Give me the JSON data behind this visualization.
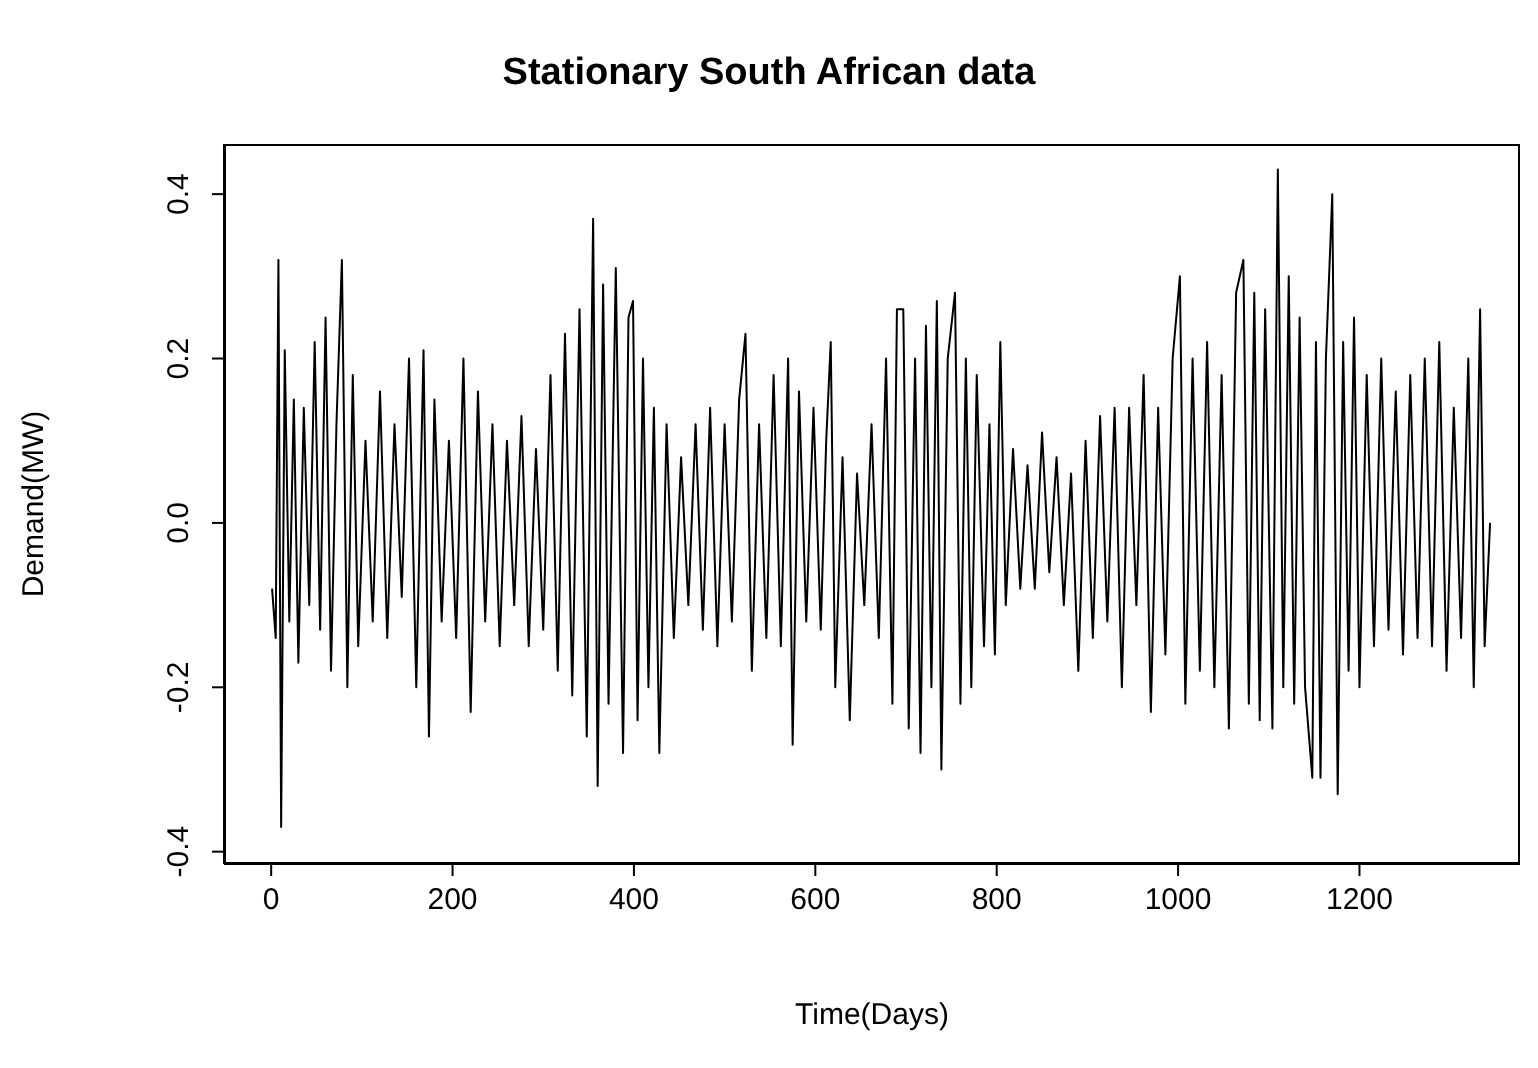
{
  "chart_data": {
    "type": "line",
    "title": "Stationary South African data",
    "xlabel": "Time(Days)",
    "ylabel": "Demand(MW)",
    "xlim": [
      -52,
      1377
    ],
    "ylim": [
      -0.415,
      0.461
    ],
    "xticks": [
      0,
      200,
      400,
      600,
      800,
      1000,
      1200
    ],
    "yticks": [
      {
        "value": -0.4,
        "label": "-0.4"
      },
      {
        "value": -0.2,
        "label": "-0.2"
      },
      {
        "value": 0,
        "label": "0.0"
      },
      {
        "value": 0.2,
        "label": "0.2"
      },
      {
        "value": 0.4,
        "label": "0.4"
      }
    ],
    "marker": "none",
    "line_style": "solid",
    "series": [
      {
        "color": "#000000",
        "x": [
          1,
          5,
          8,
          11,
          15,
          20,
          25,
          30,
          36,
          42,
          48,
          54,
          60,
          66,
          72,
          78,
          84,
          90,
          96,
          104,
          112,
          120,
          128,
          136,
          144,
          152,
          160,
          168,
          174,
          180,
          188,
          196,
          204,
          212,
          220,
          228,
          236,
          244,
          252,
          260,
          268,
          276,
          284,
          292,
          300,
          308,
          316,
          324,
          332,
          340,
          348,
          355,
          360,
          366,
          372,
          380,
          388,
          394,
          399,
          404,
          410,
          416,
          422,
          428,
          436,
          444,
          452,
          460,
          468,
          476,
          484,
          492,
          500,
          508,
          516,
          523,
          530,
          538,
          546,
          554,
          562,
          570,
          575,
          582,
          590,
          598,
          606,
          612,
          617,
          622,
          630,
          638,
          646,
          654,
          662,
          670,
          678,
          685,
          690,
          697,
          703,
          710,
          716,
          722,
          728,
          734,
          739,
          746,
          754,
          760,
          766,
          772,
          778,
          786,
          792,
          798,
          804,
          810,
          818,
          826,
          834,
          842,
          850,
          858,
          866,
          874,
          882,
          890,
          898,
          906,
          914,
          922,
          930,
          938,
          946,
          954,
          962,
          970,
          978,
          986,
          994,
          1002,
          1008,
          1016,
          1024,
          1032,
          1040,
          1048,
          1056,
          1064,
          1072,
          1078,
          1084,
          1090,
          1096,
          1104,
          1110,
          1116,
          1122,
          1128,
          1134,
          1140,
          1148,
          1152,
          1157,
          1163,
          1170,
          1176,
          1182,
          1188,
          1194,
          1200,
          1208,
          1216,
          1224,
          1232,
          1240,
          1248,
          1256,
          1264,
          1272,
          1280,
          1288,
          1296,
          1304,
          1312,
          1320,
          1326,
          1333,
          1338,
          1344
        ],
        "values": [
          -0.08,
          -0.14,
          0.32,
          -0.37,
          0.21,
          -0.12,
          0.15,
          -0.17,
          0.14,
          -0.1,
          0.22,
          -0.13,
          0.25,
          -0.18,
          0.12,
          0.32,
          -0.2,
          0.18,
          -0.15,
          0.1,
          -0.12,
          0.16,
          -0.14,
          0.12,
          -0.09,
          0.2,
          -0.2,
          0.21,
          -0.26,
          0.15,
          -0.12,
          0.1,
          -0.14,
          0.2,
          -0.23,
          0.16,
          -0.12,
          0.12,
          -0.15,
          0.1,
          -0.1,
          0.13,
          -0.15,
          0.09,
          -0.13,
          0.18,
          -0.18,
          0.23,
          -0.21,
          0.26,
          -0.26,
          0.37,
          -0.32,
          0.29,
          -0.22,
          0.31,
          -0.28,
          0.25,
          0.27,
          -0.24,
          0.2,
          -0.2,
          0.14,
          -0.28,
          0.12,
          -0.14,
          0.08,
          -0.1,
          0.12,
          -0.13,
          0.14,
          -0.15,
          0.12,
          -0.12,
          0.15,
          0.23,
          -0.18,
          0.12,
          -0.14,
          0.18,
          -0.15,
          0.2,
          -0.27,
          0.16,
          -0.12,
          0.14,
          -0.13,
          0.1,
          0.22,
          -0.2,
          0.08,
          -0.24,
          0.06,
          -0.1,
          0.12,
          -0.14,
          0.2,
          -0.22,
          0.26,
          0.26,
          -0.25,
          0.2,
          -0.28,
          0.24,
          -0.2,
          0.27,
          -0.3,
          0.2,
          0.28,
          -0.22,
          0.2,
          -0.2,
          0.18,
          -0.15,
          0.12,
          -0.16,
          0.22,
          -0.1,
          0.09,
          -0.08,
          0.07,
          -0.08,
          0.11,
          -0.06,
          0.08,
          -0.1,
          0.06,
          -0.18,
          0.1,
          -0.14,
          0.13,
          -0.12,
          0.14,
          -0.2,
          0.14,
          -0.1,
          0.18,
          -0.23,
          0.14,
          -0.16,
          0.2,
          0.3,
          -0.22,
          0.2,
          -0.18,
          0.22,
          -0.2,
          0.18,
          -0.25,
          0.28,
          0.32,
          -0.22,
          0.28,
          -0.24,
          0.26,
          -0.25,
          0.43,
          -0.2,
          0.3,
          -0.22,
          0.25,
          -0.2,
          -0.31,
          0.22,
          -0.31,
          0.2,
          0.4,
          -0.33,
          0.22,
          -0.18,
          0.25,
          -0.2,
          0.18,
          -0.15,
          0.2,
          -0.13,
          0.16,
          -0.16,
          0.18,
          -0.14,
          0.2,
          -0.15,
          0.22,
          -0.18,
          0.14,
          -0.14,
          0.2,
          -0.2,
          0.26,
          -0.15,
          0.0
        ]
      }
    ]
  }
}
